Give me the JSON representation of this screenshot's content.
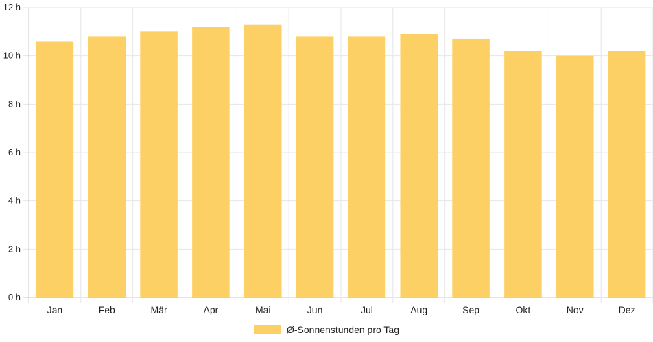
{
  "chart_data": {
    "type": "bar",
    "categories": [
      "Jan",
      "Feb",
      "Mär",
      "Apr",
      "Mai",
      "Jun",
      "Jul",
      "Aug",
      "Sep",
      "Okt",
      "Nov",
      "Dez"
    ],
    "series": [
      {
        "name": "Ø-Sonnenstunden pro Tag",
        "values": [
          10.6,
          10.8,
          11.0,
          11.2,
          11.3,
          10.8,
          10.8,
          10.9,
          10.7,
          10.2,
          10.0,
          10.2
        ]
      }
    ],
    "ylim": [
      0,
      12
    ],
    "yticks": [
      0,
      2,
      4,
      6,
      8,
      10,
      12
    ],
    "ytick_labels": [
      "0 h",
      "2 h",
      "4 h",
      "6 h",
      "8 h",
      "10 h",
      "12 h"
    ],
    "grid": true,
    "legend_position": "bottom",
    "bar_color": "#fdd066",
    "grid_color": "#e6e6e6",
    "axis_color": "#c8c8c8"
  }
}
